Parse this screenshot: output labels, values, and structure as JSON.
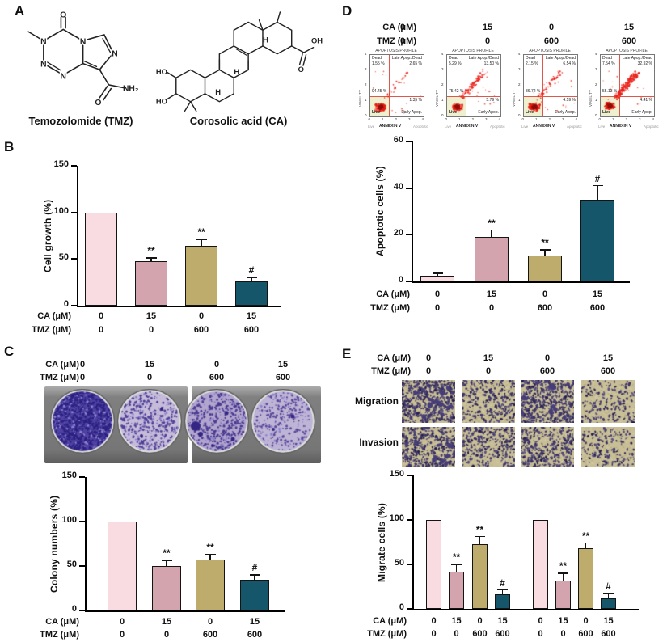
{
  "doses": {
    "ca_label": "CA (μM)",
    "tmz_label": "TMZ (μM)",
    "ca": [
      "0",
      "15",
      "0",
      "15"
    ],
    "tmz": [
      "0",
      "0",
      "600",
      "600"
    ]
  },
  "panelA": {
    "label": "A",
    "compounds": [
      {
        "name": "Temozolomide (TMZ)"
      },
      {
        "name": "Corosolic acid (CA)"
      }
    ]
  },
  "panelB": {
    "label": "B"
  },
  "panelC": {
    "label": "C"
  },
  "panelD": {
    "label": "D",
    "flow": {
      "title": "APOPTOSIS PROFILE",
      "xlabel": "ANNEXIN V",
      "ylabel": "VIABILITY",
      "x_left_label": "Live",
      "x_right_label": "Apoptotic",
      "axis_ticks": [
        "0",
        "1",
        "2",
        "3",
        "4"
      ],
      "quadrant_names": {
        "top_left": "Dead",
        "top_right": "Late Apop./Dead",
        "bottom_left": "Live",
        "bottom_right": "Early Apop."
      },
      "plots": [
        {
          "dead_pct": "1.55 %",
          "late_pct": "2.65 %",
          "live_pct": "94.45 %",
          "early_pct": "1.35 %"
        },
        {
          "dead_pct": "5.29 %",
          "late_pct": "13.50 %",
          "live_pct": "75.42 %",
          "early_pct": "5.79 %"
        },
        {
          "dead_pct": "2.15 %",
          "late_pct": "6.54 %",
          "live_pct": "86.72 %",
          "early_pct": "4.59 %"
        },
        {
          "dead_pct": "7.54 %",
          "late_pct": "32.92 %",
          "live_pct": "55.13 %",
          "early_pct": "4.41 %"
        }
      ]
    }
  },
  "panelE": {
    "label": "E",
    "row_labels": [
      "Migration",
      "Invasion"
    ]
  },
  "chart_data": [
    {
      "id": "B",
      "type": "bar",
      "title": "",
      "xlabel": "",
      "ylabel": "Cell growth (%)",
      "ylim": [
        0,
        150
      ],
      "yticks": [
        0,
        50,
        100,
        150
      ],
      "grid": false,
      "legend": "none",
      "categories": [
        "CA 0 / TMZ 0",
        "CA 15 / TMZ 0",
        "CA 0 / TMZ 600",
        "CA 15 / TMZ 600"
      ],
      "values": [
        100,
        48,
        64,
        26
      ],
      "errors": [
        0,
        3,
        7,
        4
      ],
      "annotations": [
        "",
        "**",
        "**",
        "#"
      ],
      "dose_rows": [
        {
          "label": "CA (μM)",
          "values": [
            "0",
            "15",
            "0",
            "15"
          ]
        },
        {
          "label": "TMZ (μM)",
          "values": [
            "0",
            "0",
            "600",
            "600"
          ]
        }
      ]
    },
    {
      "id": "C",
      "type": "bar",
      "title": "",
      "xlabel": "",
      "ylabel": "Colony numbers (%)",
      "ylim": [
        0,
        150
      ],
      "yticks": [
        0,
        50,
        100,
        150
      ],
      "grid": false,
      "legend": "none",
      "categories": [
        "CA 0 / TMZ 0",
        "CA 15 / TMZ 0",
        "CA 0 / TMZ 600",
        "CA 15 / TMZ 600"
      ],
      "values": [
        100,
        50,
        57,
        35
      ],
      "errors": [
        0,
        6,
        6,
        5
      ],
      "annotations": [
        "",
        "**",
        "**",
        "#"
      ],
      "dose_rows": [
        {
          "label": "CA (μM)",
          "values": [
            "0",
            "15",
            "0",
            "15"
          ]
        },
        {
          "label": "TMZ (μM)",
          "values": [
            "0",
            "0",
            "600",
            "600"
          ]
        }
      ]
    },
    {
      "id": "D",
      "type": "bar",
      "title": "",
      "xlabel": "",
      "ylabel": "Apoptotic cells (%)",
      "ylim": [
        0,
        60
      ],
      "yticks": [
        0,
        20,
        40,
        60
      ],
      "grid": false,
      "legend": "none",
      "categories": [
        "CA 0 / TMZ 0",
        "CA 15 / TMZ 0",
        "CA 0 / TMZ 600",
        "CA 15 / TMZ 600"
      ],
      "values": [
        2.5,
        19,
        11,
        35
      ],
      "errors": [
        0.8,
        3,
        2.5,
        6
      ],
      "annotations": [
        "",
        "**",
        "**",
        "#"
      ],
      "dose_rows": [
        {
          "label": "CA (μM)",
          "values": [
            "0",
            "15",
            "0",
            "15"
          ]
        },
        {
          "label": "TMZ (μM)",
          "values": [
            "0",
            "0",
            "600",
            "600"
          ]
        }
      ]
    },
    {
      "id": "E",
      "type": "bar",
      "title": "",
      "xlabel": "",
      "ylabel": "Migrate cells  (%)",
      "ylim": [
        0,
        150
      ],
      "yticks": [
        0,
        50,
        100,
        150
      ],
      "grid": false,
      "legend": "none",
      "groups": [
        "Migration",
        "Invasion"
      ],
      "categories": [
        "CA 0 / TMZ 0",
        "CA 15 / TMZ 0",
        "CA 0 / TMZ 600",
        "CA 15 / TMZ 600",
        "CA 0 / TMZ 0",
        "CA 15 / TMZ 0",
        "CA 0 / TMZ 600",
        "CA 15 / TMZ 600"
      ],
      "values": [
        100,
        42,
        73,
        16,
        100,
        32,
        68,
        12
      ],
      "errors": [
        0,
        8,
        8,
        5,
        0,
        8,
        6,
        5
      ],
      "annotations": [
        "",
        "**",
        "**",
        "#",
        "",
        "**",
        "**",
        "#"
      ],
      "dose_rows": [
        {
          "label": "CA (μM)",
          "values": [
            "0",
            "15",
            "0",
            "15",
            "0",
            "15",
            "0",
            "15"
          ]
        },
        {
          "label": "TMZ (μM)",
          "values": [
            "0",
            "0",
            "600",
            "600",
            "0",
            "0",
            "600",
            "600"
          ]
        }
      ]
    }
  ],
  "colors": {
    "bar_palette": [
      "#f8dce2",
      "#d3a4ae",
      "#bdac6b",
      "#16566b"
    ],
    "bar_outline": "#141414",
    "flow_crosshair": "#e0564a",
    "flow_dots": "#e41b12",
    "flow_live_quadrant": "#eef0cf",
    "colony_dish_dark": "#4f42a3",
    "colony_dish_light": "#c6bcda",
    "transwell_background": "#c9bf97",
    "transwell_speckle": "#3c3468"
  }
}
